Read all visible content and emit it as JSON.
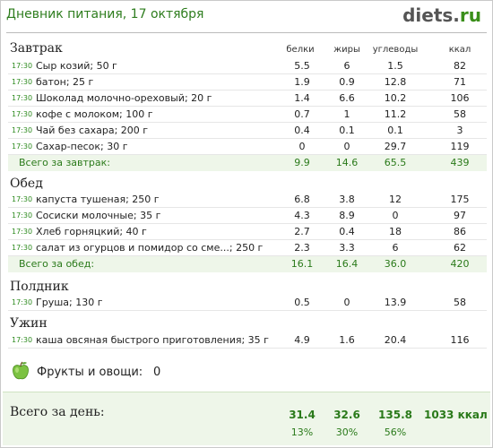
{
  "header": {
    "title": "Дневник питания, 17 октября",
    "logo_main": "diets",
    "logo_dot": ".",
    "logo_tld": "ru"
  },
  "columns": {
    "protein": "белки",
    "fat": "жиры",
    "carbs": "углеводы",
    "kcal": "ккал"
  },
  "meals": [
    {
      "name": "Завтрак",
      "items": [
        {
          "time": "17:30",
          "name": "Сыр козий; 50 г",
          "protein": "5.5",
          "fat": "6",
          "carbs": "1.5",
          "kcal": "82"
        },
        {
          "time": "17:30",
          "name": "батон; 25 г",
          "protein": "1.9",
          "fat": "0.9",
          "carbs": "12.8",
          "kcal": "71"
        },
        {
          "time": "17:30",
          "name": "Шоколад молочно-ореховый; 20 г",
          "protein": "1.4",
          "fat": "6.6",
          "carbs": "10.2",
          "kcal": "106"
        },
        {
          "time": "17:30",
          "name": "кофе с молоком; 100 г",
          "protein": "0.7",
          "fat": "1",
          "carbs": "11.2",
          "kcal": "58"
        },
        {
          "time": "17:30",
          "name": "Чай без сахара; 200 г",
          "protein": "0.4",
          "fat": "0.1",
          "carbs": "0.1",
          "kcal": "3"
        },
        {
          "time": "17:30",
          "name": "Сахар-песок; 30 г",
          "protein": "0",
          "fat": "0",
          "carbs": "29.7",
          "kcal": "119"
        }
      ],
      "total": {
        "label": "Всего за завтрак:",
        "protein": "9.9",
        "fat": "14.6",
        "carbs": "65.5",
        "kcal": "439"
      }
    },
    {
      "name": "Обед",
      "items": [
        {
          "time": "17:30",
          "name": "капуста тушеная; 250 г",
          "protein": "6.8",
          "fat": "3.8",
          "carbs": "12",
          "kcal": "175"
        },
        {
          "time": "17:30",
          "name": "Сосиски молочные; 35 г",
          "protein": "4.3",
          "fat": "8.9",
          "carbs": "0",
          "kcal": "97"
        },
        {
          "time": "17:30",
          "name": "Хлеб горняцкий; 40 г",
          "protein": "2.7",
          "fat": "0.4",
          "carbs": "18",
          "kcal": "86"
        },
        {
          "time": "17:30",
          "name": "салат из огурцов и помидор со сме...; 250 г",
          "protein": "2.3",
          "fat": "3.3",
          "carbs": "6",
          "kcal": "62"
        }
      ],
      "total": {
        "label": "Всего за обед:",
        "protein": "16.1",
        "fat": "16.4",
        "carbs": "36.0",
        "kcal": "420"
      }
    },
    {
      "name": "Полдник",
      "items": [
        {
          "time": "17:30",
          "name": "Груша; 130 г",
          "protein": "0.5",
          "fat": "0",
          "carbs": "13.9",
          "kcal": "58"
        }
      ]
    },
    {
      "name": "Ужин",
      "items": [
        {
          "time": "17:30",
          "name": "каша овсяная быстрого приготовления; 35 г",
          "protein": "4.9",
          "fat": "1.6",
          "carbs": "20.4",
          "kcal": "116"
        }
      ]
    }
  ],
  "fruits": {
    "icon": "green-apple-icon",
    "label": "Фрукты и овощи:",
    "value": "0"
  },
  "day_total": {
    "label": "Всего за день:",
    "protein": "31.4",
    "fat": "32.6",
    "carbs": "135.8",
    "kcal": "1033 ккал",
    "protein_pct": "13%",
    "fat_pct": "30%",
    "carbs_pct": "56%"
  },
  "colors": {
    "green_text": "#2e7d1e",
    "total_bg": "#eef6e9"
  }
}
